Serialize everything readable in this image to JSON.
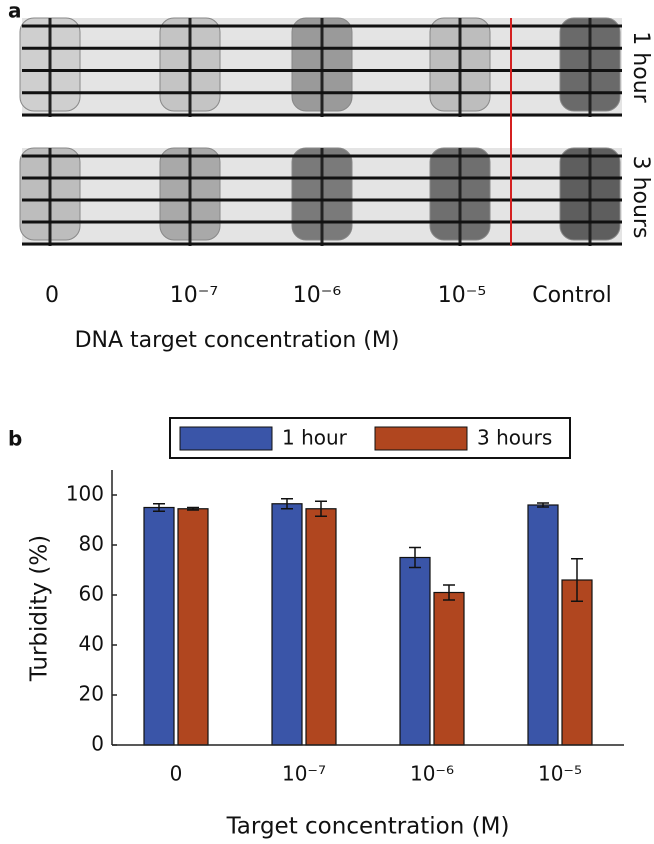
{
  "panel_a": {
    "label": "a",
    "row_labels": [
      "1 hour",
      "3 hours"
    ],
    "lane_labels": [
      "0",
      "10⁻⁷",
      "10⁻⁶",
      "10⁻⁵",
      "Control"
    ],
    "x_label": "DNA target concentration (M)"
  },
  "chart_data": {
    "type": "bar",
    "panel_label": "b",
    "x_label": "Target concentration (M)",
    "y_label": "Turbidity (%)",
    "categories": [
      "0",
      "10⁻⁷",
      "10⁻⁶",
      "10⁻⁵"
    ],
    "series": [
      {
        "name": "1 hour",
        "color": "#3a55a8",
        "values": [
          95,
          96.5,
          75,
          96
        ],
        "errors": [
          1.5,
          2,
          4,
          0.8
        ]
      },
      {
        "name": "3 hours",
        "color": "#b0461f",
        "values": [
          94.5,
          94.5,
          61,
          66
        ],
        "errors": [
          0.5,
          3,
          3,
          8.5
        ]
      }
    ],
    "ylim": [
      0,
      110
    ],
    "yticks": [
      0,
      20,
      40,
      60,
      80,
      100
    ],
    "legend": "top"
  }
}
